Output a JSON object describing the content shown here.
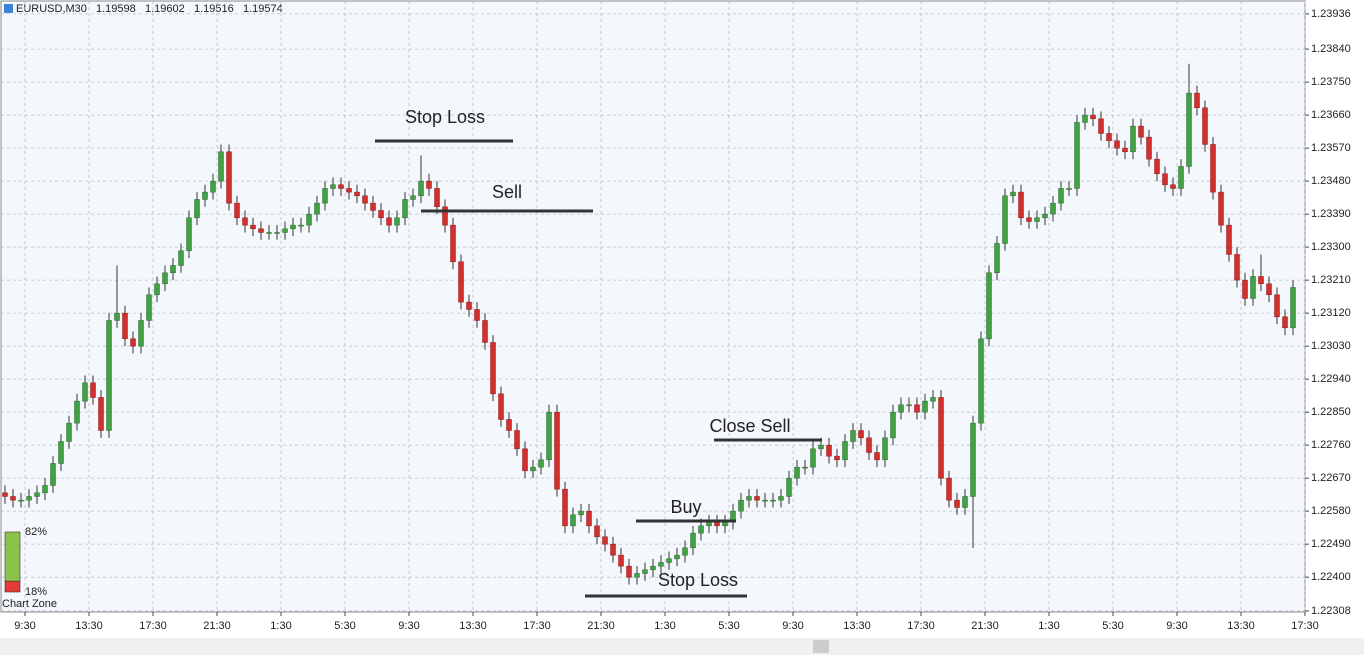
{
  "chart_data": {
    "type": "candlestick",
    "symbol": "EURUSD,M30",
    "header_values": [
      1.19598,
      1.19602,
      1.19516,
      1.19574
    ],
    "up_color": "#43a047",
    "down_color": "#d32f2f",
    "grid": true,
    "ylim": [
      1.22305,
      1.23963
    ],
    "yticks": [
      1.23936,
      {
        "value": 1.2384,
        "label": "1.23840"
      },
      {
        "value": 1.2375,
        "label": "1.23750"
      },
      {
        "value": 1.2366,
        "label": "1.23660"
      },
      {
        "value": 1.2357,
        "label": "1.23570"
      },
      {
        "value": 1.2348,
        "label": "1.23480"
      },
      {
        "value": 1.2339,
        "label": "1.23390"
      },
      {
        "value": 1.233,
        "label": "1.23300"
      },
      {
        "value": 1.2321,
        "label": "1.23210"
      },
      {
        "value": 1.2312,
        "label": "1.23120"
      },
      {
        "value": 1.2303,
        "label": "1.23030"
      },
      {
        "value": 1.2294,
        "label": "1.22940"
      },
      {
        "value": 1.2285,
        "label": "1.22850"
      },
      {
        "value": 1.2276,
        "label": "1.22760"
      },
      {
        "value": 1.2267,
        "label": "1.22670"
      },
      {
        "value": 1.2258,
        "label": "1.22580"
      },
      {
        "value": 1.2249,
        "label": "1.22490"
      },
      {
        "value": 1.224,
        "label": "1.22400"
      },
      1.22308
    ],
    "x_labels": [
      "9:30",
      "13:30",
      "17:30",
      "21:30",
      "1:30",
      "5:30",
      "9:30",
      "13:30",
      "17:30",
      "21:30",
      "1:30",
      "5:30",
      "9:30",
      "13:30",
      "17:30",
      "21:30",
      "1:30",
      "5:30",
      "9:30",
      "13:30",
      "17:30"
    ],
    "open": [
      1.2263,
      1.2262,
      1.2261,
      1.2261,
      1.2262,
      1.2263,
      1.2265,
      1.2271,
      1.2277,
      1.2282,
      1.2288,
      1.2293,
      1.2289,
      1.228,
      1.231,
      1.2312,
      1.2305,
      1.2303,
      1.231,
      1.2317,
      1.232,
      1.2323,
      1.2325,
      1.2329,
      1.2338,
      1.2343,
      1.2345,
      1.2348,
      1.2356,
      1.2342,
      1.2338,
      1.2336,
      1.2335,
      1.2334,
      1.2334,
      1.2334,
      1.2335,
      1.2336,
      1.2336,
      1.2339,
      1.2342,
      1.2346,
      1.2347,
      1.2346,
      1.2345,
      1.2344,
      1.2342,
      1.234,
      1.2338,
      1.2336,
      1.2338,
      1.2343,
      1.2344,
      1.2348,
      1.2346,
      1.2341,
      1.2336,
      1.2326,
      1.2315,
      1.2313,
      1.231,
      1.2304,
      1.229,
      1.2283,
      1.228,
      1.2275,
      1.2269,
      1.227,
      1.2272,
      1.2285,
      1.2264,
      1.2254,
      1.2257,
      1.2258,
      1.2254,
      1.2251,
      1.2249,
      1.2246,
      1.2243,
      1.224,
      1.2241,
      1.2242,
      1.2243,
      1.2244,
      1.2245,
      1.2246,
      1.2248,
      1.2252,
      1.2254,
      1.2255,
      1.2254,
      1.2255,
      1.2258,
      1.2261,
      1.2262,
      1.2261,
      1.2261,
      1.2261,
      1.2262,
      1.2267,
      1.227,
      1.227,
      1.2275,
      1.2276,
      1.2273,
      1.2272,
      1.2277,
      1.228,
      1.2278,
      1.2274,
      1.2272,
      1.2278,
      1.2285,
      1.2287,
      1.2287,
      1.2285,
      1.2288,
      1.2289,
      1.2267,
      1.2261,
      1.2259,
      1.2262,
      1.2282,
      1.2305,
      1.2323,
      1.2331,
      1.2344,
      1.2345,
      1.2338,
      1.2337,
      1.2338,
      1.2339,
      1.2342,
      1.2346,
      1.2346,
      1.2364,
      1.2366,
      1.2365,
      1.2361,
      1.2359,
      1.2357,
      1.2356,
      1.2363,
      1.236,
      1.2354,
      1.235,
      1.2347,
      1.2346,
      1.2352,
      1.2372,
      1.2368,
      1.2358,
      1.2345,
      1.2336,
      1.2328,
      1.2321,
      1.2316,
      1.2322,
      1.232,
      1.2317,
      1.2311,
      1.2308
    ],
    "high": [
      1.2265,
      1.2264,
      1.2263,
      1.2264,
      1.2265,
      1.2267,
      1.2273,
      1.2279,
      1.2284,
      1.229,
      1.2295,
      1.2295,
      1.2291,
      1.2312,
      1.2325,
      1.2314,
      1.2307,
      1.2312,
      1.2319,
      1.2322,
      1.2325,
      1.2327,
      1.2331,
      1.234,
      1.2345,
      1.2347,
      1.235,
      1.2358,
      1.2358,
      1.2344,
      1.234,
      1.2338,
      1.2337,
      1.2336,
      1.2336,
      1.2337,
      1.2338,
      1.2338,
      1.2341,
      1.2344,
      1.2348,
      1.2349,
      1.2349,
      1.2348,
      1.2347,
      1.2346,
      1.2344,
      1.2342,
      1.234,
      1.234,
      1.2345,
      1.2346,
      1.2355,
      1.235,
      1.2348,
      1.2343,
      1.2338,
      1.2328,
      1.2317,
      1.2315,
      1.2312,
      1.2306,
      1.2292,
      1.2285,
      1.2282,
      1.2277,
      1.2272,
      1.2274,
      1.2287,
      1.2287,
      1.2266,
      1.2259,
      1.226,
      1.226,
      1.2256,
      1.2253,
      1.2251,
      1.2248,
      1.2245,
      1.2243,
      1.2244,
      1.2245,
      1.2246,
      1.2247,
      1.2248,
      1.225,
      1.2254,
      1.2256,
      1.2257,
      1.2257,
      1.2257,
      1.226,
      1.2263,
      1.2264,
      1.2264,
      1.2263,
      1.2263,
      1.2264,
      1.2269,
      1.2272,
      1.2272,
      1.2277,
      1.2278,
      1.2278,
      1.2275,
      1.2279,
      1.2282,
      1.2282,
      1.228,
      1.2276,
      1.228,
      1.2287,
      1.2289,
      1.2289,
      1.2289,
      1.229,
      1.2291,
      1.2291,
      1.2269,
      1.2263,
      1.2264,
      1.2284,
      1.2307,
      1.2325,
      1.2333,
      1.2346,
      1.2347,
      1.2347,
      1.234,
      1.234,
      1.2341,
      1.2344,
      1.2348,
      1.2348,
      1.2366,
      1.2368,
      1.2368,
      1.2367,
      1.2363,
      1.2361,
      1.2359,
      1.2365,
      1.2365,
      1.2362,
      1.2356,
      1.2352,
      1.2349,
      1.2354,
      1.238,
      1.2374,
      1.237,
      1.236,
      1.2347,
      1.2338,
      1.233,
      1.2323,
      1.2324,
      1.2328,
      1.2322,
      1.2319,
      1.2313,
      1.2321
    ],
    "low": [
      1.226,
      1.2259,
      1.2259,
      1.2259,
      1.226,
      1.2261,
      1.2263,
      1.2269,
      1.2275,
      1.228,
      1.2286,
      1.2287,
      1.2278,
      1.2278,
      1.2308,
      1.2303,
      1.2301,
      1.2301,
      1.2308,
      1.2315,
      1.2318,
      1.2321,
      1.2323,
      1.2327,
      1.2336,
      1.2341,
      1.2343,
      1.2346,
      1.234,
      1.2336,
      1.2334,
      1.2333,
      1.2332,
      1.2332,
      1.2332,
      1.2332,
      1.2333,
      1.2334,
      1.2334,
      1.2337,
      1.234,
      1.2344,
      1.2344,
      1.2343,
      1.2342,
      1.234,
      1.2338,
      1.2336,
      1.2334,
      1.2334,
      1.2336,
      1.2341,
      1.2342,
      1.2344,
      1.2339,
      1.2334,
      1.2324,
      1.2313,
      1.2311,
      1.2308,
      1.2302,
      1.2288,
      1.2281,
      1.2278,
      1.2273,
      1.2267,
      1.2267,
      1.2268,
      1.227,
      1.2262,
      1.2252,
      1.2252,
      1.2255,
      1.2252,
      1.2249,
      1.2247,
      1.2244,
      1.2241,
      1.2238,
      1.2238,
      1.2239,
      1.224,
      1.2241,
      1.2242,
      1.2243,
      1.2244,
      1.2246,
      1.225,
      1.2252,
      1.2252,
      1.2252,
      1.2253,
      1.2256,
      1.2259,
      1.2259,
      1.2259,
      1.2259,
      1.2259,
      1.226,
      1.2265,
      1.2268,
      1.2268,
      1.2273,
      1.2271,
      1.227,
      1.227,
      1.2275,
      1.2276,
      1.2272,
      1.227,
      1.227,
      1.2276,
      1.2283,
      1.2285,
      1.2283,
      1.2283,
      1.2286,
      1.2265,
      1.2259,
      1.2257,
      1.2257,
      1.2248,
      1.228,
      1.2303,
      1.2321,
      1.2329,
      1.2342,
      1.2336,
      1.2335,
      1.2335,
      1.2336,
      1.2337,
      1.234,
      1.2344,
      1.2344,
      1.2362,
      1.2363,
      1.2359,
      1.2357,
      1.2355,
      1.2354,
      1.2354,
      1.2358,
      1.2352,
      1.2348,
      1.2345,
      1.2344,
      1.2344,
      1.235,
      1.2366,
      1.2356,
      1.2343,
      1.2334,
      1.2326,
      1.2319,
      1.2314,
      1.2314,
      1.2318,
      1.2315,
      1.2309,
      1.2306,
      1.2306
    ],
    "close": [
      1.2262,
      1.2261,
      1.2261,
      1.2262,
      1.2263,
      1.2265,
      1.2271,
      1.2277,
      1.2282,
      1.2288,
      1.2293,
      1.2289,
      1.228,
      1.231,
      1.2312,
      1.2305,
      1.2303,
      1.231,
      1.2317,
      1.232,
      1.2323,
      1.2325,
      1.2329,
      1.2338,
      1.2343,
      1.2345,
      1.2348,
      1.2356,
      1.2342,
      1.2338,
      1.2336,
      1.2335,
      1.2334,
      1.2334,
      1.2334,
      1.2335,
      1.2336,
      1.2336,
      1.2339,
      1.2342,
      1.2346,
      1.2347,
      1.2346,
      1.2345,
      1.2344,
      1.2342,
      1.234,
      1.2338,
      1.2336,
      1.2338,
      1.2343,
      1.2344,
      1.2348,
      1.2346,
      1.2341,
      1.2336,
      1.2326,
      1.2315,
      1.2313,
      1.231,
      1.2304,
      1.229,
      1.2283,
      1.228,
      1.2275,
      1.2269,
      1.227,
      1.2272,
      1.2285,
      1.2264,
      1.2254,
      1.2257,
      1.2258,
      1.2254,
      1.2251,
      1.2249,
      1.2246,
      1.2243,
      1.224,
      1.2241,
      1.2242,
      1.2243,
      1.2244,
      1.2245,
      1.2246,
      1.2248,
      1.2252,
      1.2254,
      1.2255,
      1.2254,
      1.2255,
      1.2258,
      1.2261,
      1.2262,
      1.2261,
      1.2261,
      1.2261,
      1.2262,
      1.2267,
      1.227,
      1.227,
      1.2275,
      1.2276,
      1.2273,
      1.2272,
      1.2277,
      1.228,
      1.2278,
      1.2274,
      1.2272,
      1.2278,
      1.2285,
      1.2287,
      1.2287,
      1.2285,
      1.2288,
      1.2289,
      1.2267,
      1.2261,
      1.2259,
      1.2262,
      1.2282,
      1.2305,
      1.2323,
      1.2331,
      1.2344,
      1.2345,
      1.2338,
      1.2337,
      1.2338,
      1.2339,
      1.2342,
      1.2346,
      1.2346,
      1.2364,
      1.2366,
      1.2365,
      1.2361,
      1.2359,
      1.2357,
      1.2356,
      1.2363,
      1.236,
      1.2354,
      1.235,
      1.2347,
      1.2346,
      1.2352,
      1.2372,
      1.2368,
      1.2358,
      1.2345,
      1.2336,
      1.2328,
      1.2321,
      1.2316,
      1.2322,
      1.232,
      1.2317,
      1.2311,
      1.2308,
      1.2319
    ],
    "annotations": [
      "Stop Loss",
      "Sell",
      "Close Sell",
      "Buy",
      "Stop Loss"
    ],
    "chart_zone": {
      "label": "Chart Zone",
      "values": [
        82,
        18
      ],
      "value_labels": [
        "82%",
        "18%"
      ],
      "colors": [
        "#8bc34a",
        "#e53935"
      ]
    }
  }
}
